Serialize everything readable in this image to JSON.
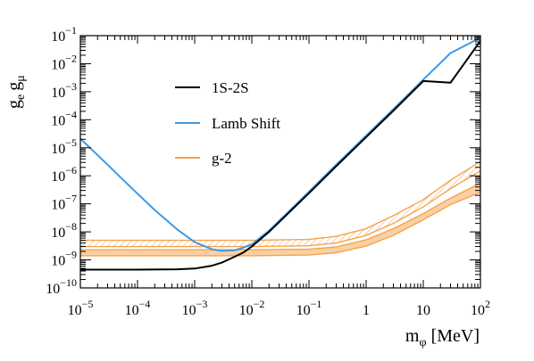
{
  "chart_data": {
    "type": "line",
    "xlabel": {
      "base": "m",
      "sub": "φ",
      "rest": " [MeV]"
    },
    "ylabel": {
      "g1": "g",
      "sub1": "e",
      "g2": "g",
      "sub2": "μ"
    },
    "xscale": "log",
    "yscale": "log",
    "xlim": [
      1e-05,
      100
    ],
    "ylim": [
      1e-10,
      0.1
    ],
    "x_ticks": [
      {
        "v": 1e-05,
        "base": "10",
        "exp": "−5"
      },
      {
        "v": 0.0001,
        "base": "10",
        "exp": "−4"
      },
      {
        "v": 0.001,
        "base": "10",
        "exp": "−3"
      },
      {
        "v": 0.01,
        "base": "10",
        "exp": "−2"
      },
      {
        "v": 0.1,
        "base": "10",
        "exp": "−1"
      },
      {
        "v": 1,
        "base": "1",
        "exp": ""
      },
      {
        "v": 10,
        "base": "10",
        "exp": ""
      },
      {
        "v": 100,
        "base": "10",
        "exp": "2"
      }
    ],
    "y_ticks": [
      {
        "v": 1e-10,
        "base": "10",
        "exp": "−10"
      },
      {
        "v": 1e-09,
        "base": "10",
        "exp": "−9"
      },
      {
        "v": 1e-08,
        "base": "10",
        "exp": "−8"
      },
      {
        "v": 1e-07,
        "base": "10",
        "exp": "−7"
      },
      {
        "v": 1e-06,
        "base": "10",
        "exp": "−6"
      },
      {
        "v": 1e-05,
        "base": "10",
        "exp": "−5"
      },
      {
        "v": 0.0001,
        "base": "10",
        "exp": "−4"
      },
      {
        "v": 0.001,
        "base": "10",
        "exp": "−3"
      },
      {
        "v": 0.01,
        "base": "10",
        "exp": "−2"
      },
      {
        "v": 0.1,
        "base": "10",
        "exp": "−1"
      }
    ],
    "legend_position": "upper-center",
    "series": [
      {
        "name": "1S-2S",
        "color": "#000000",
        "x": [
          1e-05,
          0.0001,
          0.0005,
          0.001,
          0.002,
          0.003,
          0.005,
          0.007,
          0.01,
          0.02,
          0.05,
          0.1,
          0.3,
          1,
          3,
          10,
          30,
          100
        ],
        "y": [
          4.5e-10,
          4.5e-10,
          4.6e-10,
          4.9e-10,
          6.2e-10,
          8e-10,
          1.3e-09,
          1.8e-09,
          3e-09,
          1e-08,
          6.1e-08,
          2.4e-07,
          2.2e-06,
          2.4e-05,
          0.00021,
          0.0024,
          0.0021,
          0.065
        ]
      },
      {
        "name": "Lamb Shift",
        "color": "#3d9ae6",
        "x": [
          1e-05,
          2e-05,
          5e-05,
          0.0001,
          0.0002,
          0.0005,
          0.001,
          0.002,
          0.003,
          0.005,
          0.007,
          0.01,
          0.02,
          0.05,
          0.1,
          0.3,
          1,
          3,
          10,
          30,
          100
        ],
        "y": [
          2.1e-05,
          5.5e-06,
          9e-07,
          2.3e-07,
          6e-08,
          1.2e-08,
          4.3e-09,
          2.4e-09,
          2.1e-09,
          2.2e-09,
          2.7e-09,
          3.6e-09,
          1.1e-08,
          6.8e-08,
          2.7e-07,
          2.5e-06,
          2.7e-05,
          0.00024,
          0.0027,
          0.024,
          0.085
        ]
      },
      {
        "name": "g-2",
        "color": "#f5a24b",
        "x": [
          1e-05,
          0.001,
          0.01,
          0.1,
          0.3,
          1,
          3,
          10,
          30,
          100
        ],
        "bands": [
          {
            "kind": "hatched",
            "upper": [
              5e-09,
              5e-09,
              5e-09,
              5.4e-09,
              6.9e-09,
              1.3e-08,
              3.8e-08,
              1.4e-07,
              7e-07,
              3.2e-06
            ],
            "lower": [
              3e-09,
              3e-09,
              3e-09,
              3.2e-09,
              4e-09,
              7.5e-09,
              2e-08,
              7.8e-08,
              3.5e-07,
              1.5e-06
            ]
          },
          {
            "kind": "solid",
            "upper": [
              2.3e-09,
              2.3e-09,
              2.3e-09,
              2.4e-09,
              2.9e-09,
              5.2e-09,
              1.3e-08,
              4.5e-08,
              1.6e-07,
              5.5e-07
            ],
            "lower": [
              1.4e-09,
              1.4e-09,
              1.4e-09,
              1.5e-09,
              1.8e-09,
              3.1e-09,
              7.5e-09,
              2.7e-08,
              9.4e-08,
              2.6e-07
            ]
          }
        ]
      }
    ]
  }
}
